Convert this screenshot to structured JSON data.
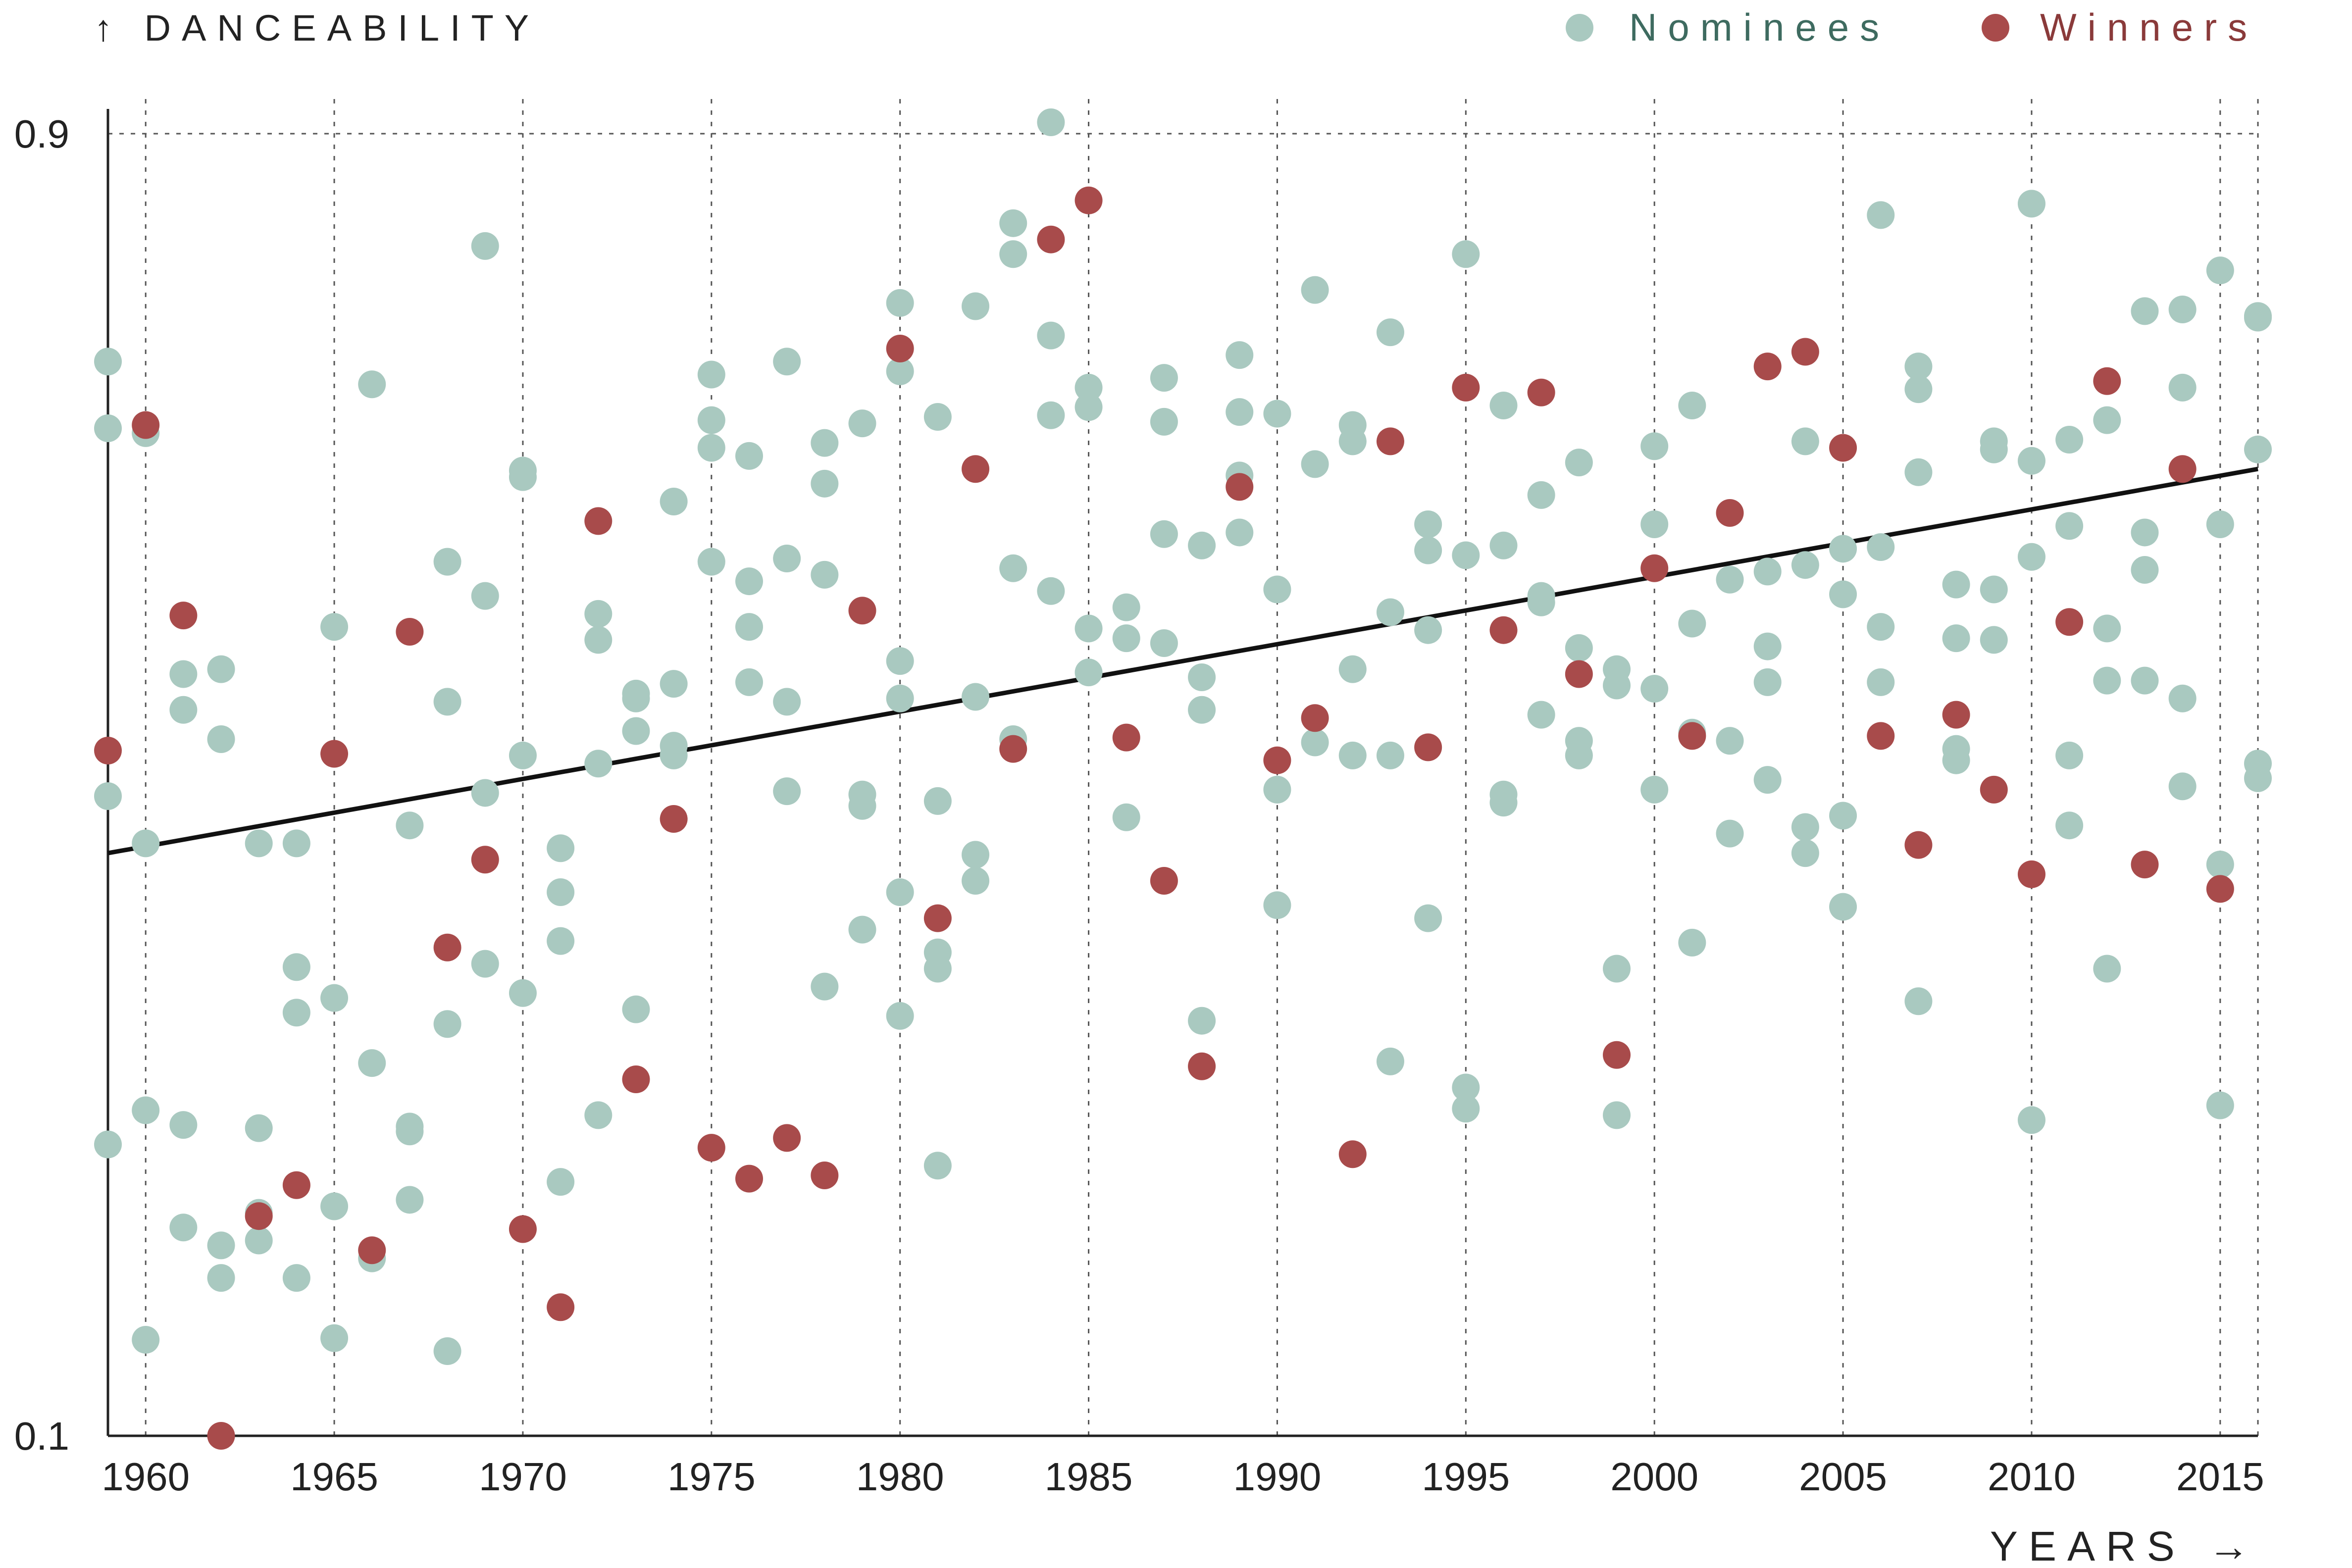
{
  "chart_data": {
    "type": "scatter",
    "ylabel": "↑ DANCEABILITY",
    "xlabel": "YEARS →",
    "xlim": [
      1959,
      2016
    ],
    "ylim": [
      0.1,
      0.9
    ],
    "x_ticks": [
      1960,
      1965,
      1970,
      1975,
      1980,
      1985,
      1990,
      1995,
      2000,
      2005,
      2010,
      2015
    ],
    "x_tick_labels": [
      "1960",
      "1965",
      "1970",
      "1975",
      "1980",
      "1985",
      "1990",
      "1995",
      "2000",
      "2005",
      "2010",
      "2015"
    ],
    "y_ticks": [
      0.1,
      0.9
    ],
    "y_tick_labels": [
      "0.1",
      "0.9"
    ],
    "grid": {
      "vertical": true,
      "horizontal_top": true,
      "style": "dotted"
    },
    "legend_position": "top-right",
    "colors": {
      "nominees": "#a9c9c0",
      "winners": "#a84b4b",
      "nominees_text": "#3e6b60",
      "winners_text": "#8a3a3a",
      "trend": "#111111"
    },
    "trendline": {
      "x": [
        1959,
        2016
      ],
      "y": [
        0.458,
        0.694
      ]
    },
    "series": [
      {
        "name": "Nominees",
        "points": [
          [
            1959,
            0.76
          ],
          [
            1959,
            0.719
          ],
          [
            1959,
            0.493
          ],
          [
            1959,
            0.279
          ],
          [
            1960,
            0.716
          ],
          [
            1960,
            0.464
          ],
          [
            1960,
            0.3
          ],
          [
            1960,
            0.159
          ],
          [
            1961,
            0.568
          ],
          [
            1961,
            0.546
          ],
          [
            1961,
            0.291
          ],
          [
            1961,
            0.228
          ],
          [
            1962,
            0.571
          ],
          [
            1962,
            0.528
          ],
          [
            1962,
            0.217
          ],
          [
            1962,
            0.197
          ],
          [
            1963,
            0.464
          ],
          [
            1963,
            0.289
          ],
          [
            1963,
            0.237
          ],
          [
            1963,
            0.22
          ],
          [
            1964,
            0.464
          ],
          [
            1964,
            0.388
          ],
          [
            1964,
            0.36
          ],
          [
            1964,
            0.197
          ],
          [
            1965,
            0.597
          ],
          [
            1965,
            0.369
          ],
          [
            1965,
            0.241
          ],
          [
            1965,
            0.16
          ],
          [
            1966,
            0.746
          ],
          [
            1966,
            0.329
          ],
          [
            1966,
            0.209
          ],
          [
            1967,
            0.475
          ],
          [
            1967,
            0.29
          ],
          [
            1967,
            0.287
          ],
          [
            1967,
            0.245
          ],
          [
            1968,
            0.637
          ],
          [
            1968,
            0.551
          ],
          [
            1968,
            0.353
          ],
          [
            1968,
            0.152
          ],
          [
            1969,
            0.831
          ],
          [
            1969,
            0.616
          ],
          [
            1969,
            0.495
          ],
          [
            1969,
            0.39
          ],
          [
            1970,
            0.693
          ],
          [
            1970,
            0.689
          ],
          [
            1970,
            0.518
          ],
          [
            1970,
            0.372
          ],
          [
            1971,
            0.461
          ],
          [
            1971,
            0.434
          ],
          [
            1971,
            0.404
          ],
          [
            1971,
            0.256
          ],
          [
            1972,
            0.605
          ],
          [
            1972,
            0.589
          ],
          [
            1972,
            0.513
          ],
          [
            1972,
            0.297
          ],
          [
            1973,
            0.556
          ],
          [
            1973,
            0.553
          ],
          [
            1973,
            0.533
          ],
          [
            1973,
            0.362
          ],
          [
            1974,
            0.674
          ],
          [
            1974,
            0.562
          ],
          [
            1974,
            0.524
          ],
          [
            1974,
            0.518
          ],
          [
            1975,
            0.752
          ],
          [
            1975,
            0.724
          ],
          [
            1975,
            0.707
          ],
          [
            1975,
            0.637
          ],
          [
            1976,
            0.702
          ],
          [
            1976,
            0.625
          ],
          [
            1976,
            0.597
          ],
          [
            1976,
            0.563
          ],
          [
            1977,
            0.76
          ],
          [
            1977,
            0.639
          ],
          [
            1977,
            0.551
          ],
          [
            1977,
            0.496
          ],
          [
            1978,
            0.71
          ],
          [
            1978,
            0.685
          ],
          [
            1978,
            0.629
          ],
          [
            1978,
            0.376
          ],
          [
            1979,
            0.722
          ],
          [
            1979,
            0.494
          ],
          [
            1979,
            0.487
          ],
          [
            1979,
            0.411
          ],
          [
            1980,
            0.796
          ],
          [
            1980,
            0.754
          ],
          [
            1980,
            0.576
          ],
          [
            1980,
            0.553
          ],
          [
            1980,
            0.434
          ],
          [
            1980,
            0.358
          ],
          [
            1981,
            0.726
          ],
          [
            1981,
            0.49
          ],
          [
            1981,
            0.397
          ],
          [
            1981,
            0.387
          ],
          [
            1981,
            0.266
          ],
          [
            1982,
            0.794
          ],
          [
            1982,
            0.554
          ],
          [
            1982,
            0.457
          ],
          [
            1982,
            0.441
          ],
          [
            1983,
            0.845
          ],
          [
            1983,
            0.826
          ],
          [
            1983,
            0.633
          ],
          [
            1983,
            0.528
          ],
          [
            1984,
            0.907
          ],
          [
            1984,
            0.776
          ],
          [
            1984,
            0.727
          ],
          [
            1984,
            0.619
          ],
          [
            1985,
            0.744
          ],
          [
            1985,
            0.732
          ],
          [
            1985,
            0.596
          ],
          [
            1985,
            0.569
          ],
          [
            1986,
            0.609
          ],
          [
            1986,
            0.59
          ],
          [
            1986,
            0.48
          ],
          [
            1987,
            0.75
          ],
          [
            1987,
            0.723
          ],
          [
            1987,
            0.654
          ],
          [
            1987,
            0.587
          ],
          [
            1988,
            0.647
          ],
          [
            1988,
            0.566
          ],
          [
            1988,
            0.546
          ],
          [
            1988,
            0.355
          ],
          [
            1989,
            0.764
          ],
          [
            1989,
            0.729
          ],
          [
            1989,
            0.69
          ],
          [
            1989,
            0.655
          ],
          [
            1990,
            0.728
          ],
          [
            1990,
            0.62
          ],
          [
            1990,
            0.497
          ],
          [
            1990,
            0.426
          ],
          [
            1991,
            0.804
          ],
          [
            1991,
            0.697
          ],
          [
            1991,
            0.526
          ],
          [
            1992,
            0.721
          ],
          [
            1992,
            0.711
          ],
          [
            1992,
            0.571
          ],
          [
            1992,
            0.518
          ],
          [
            1993,
            0.778
          ],
          [
            1993,
            0.606
          ],
          [
            1993,
            0.518
          ],
          [
            1993,
            0.33
          ],
          [
            1994,
            0.66
          ],
          [
            1994,
            0.644
          ],
          [
            1994,
            0.595
          ],
          [
            1994,
            0.418
          ],
          [
            1995,
            0.826
          ],
          [
            1995,
            0.641
          ],
          [
            1995,
            0.314
          ],
          [
            1995,
            0.301
          ],
          [
            1996,
            0.733
          ],
          [
            1996,
            0.647
          ],
          [
            1996,
            0.494
          ],
          [
            1996,
            0.489
          ],
          [
            1997,
            0.678
          ],
          [
            1997,
            0.616
          ],
          [
            1997,
            0.612
          ],
          [
            1997,
            0.543
          ],
          [
            1998,
            0.698
          ],
          [
            1998,
            0.584
          ],
          [
            1998,
            0.527
          ],
          [
            1998,
            0.518
          ],
          [
            1999,
            0.571
          ],
          [
            1999,
            0.561
          ],
          [
            1999,
            0.387
          ],
          [
            1999,
            0.297
          ],
          [
            2000,
            0.708
          ],
          [
            2000,
            0.66
          ],
          [
            2000,
            0.559
          ],
          [
            2000,
            0.497
          ],
          [
            2001,
            0.733
          ],
          [
            2001,
            0.599
          ],
          [
            2001,
            0.532
          ],
          [
            2001,
            0.403
          ],
          [
            2002,
            0.626
          ],
          [
            2002,
            0.527
          ],
          [
            2002,
            0.47
          ],
          [
            2003,
            0.631
          ],
          [
            2003,
            0.585
          ],
          [
            2003,
            0.563
          ],
          [
            2003,
            0.503
          ],
          [
            2004,
            0.711
          ],
          [
            2004,
            0.635
          ],
          [
            2004,
            0.474
          ],
          [
            2004,
            0.458
          ],
          [
            2005,
            0.645
          ],
          [
            2005,
            0.617
          ],
          [
            2005,
            0.481
          ],
          [
            2005,
            0.425
          ],
          [
            2006,
            0.85
          ],
          [
            2006,
            0.646
          ],
          [
            2006,
            0.597
          ],
          [
            2006,
            0.563
          ],
          [
            2007,
            0.757
          ],
          [
            2007,
            0.743
          ],
          [
            2007,
            0.692
          ],
          [
            2007,
            0.367
          ],
          [
            2008,
            0.623
          ],
          [
            2008,
            0.59
          ],
          [
            2008,
            0.522
          ],
          [
            2008,
            0.515
          ],
          [
            2009,
            0.711
          ],
          [
            2009,
            0.706
          ],
          [
            2009,
            0.62
          ],
          [
            2009,
            0.589
          ],
          [
            2010,
            0.857
          ],
          [
            2010,
            0.699
          ],
          [
            2010,
            0.64
          ],
          [
            2010,
            0.294
          ],
          [
            2011,
            0.712
          ],
          [
            2011,
            0.659
          ],
          [
            2011,
            0.518
          ],
          [
            2011,
            0.475
          ],
          [
            2012,
            0.724
          ],
          [
            2012,
            0.596
          ],
          [
            2012,
            0.564
          ],
          [
            2012,
            0.387
          ],
          [
            2013,
            0.791
          ],
          [
            2013,
            0.655
          ],
          [
            2013,
            0.632
          ],
          [
            2013,
            0.564
          ],
          [
            2014,
            0.792
          ],
          [
            2014,
            0.744
          ],
          [
            2014,
            0.553
          ],
          [
            2014,
            0.499
          ],
          [
            2015,
            0.816
          ],
          [
            2015,
            0.66
          ],
          [
            2015,
            0.451
          ],
          [
            2015,
            0.303
          ],
          [
            2016,
            0.788
          ],
          [
            2016,
            0.787
          ],
          [
            2016,
            0.706
          ],
          [
            2016,
            0.513
          ],
          [
            2016,
            0.504
          ]
        ]
      },
      {
        "name": "Winners",
        "points": [
          [
            1959,
            0.521
          ],
          [
            1960,
            0.721
          ],
          [
            1961,
            0.604
          ],
          [
            1962,
            0.1
          ],
          [
            1963,
            0.235
          ],
          [
            1964,
            0.254
          ],
          [
            1965,
            0.519
          ],
          [
            1966,
            0.214
          ],
          [
            1967,
            0.594
          ],
          [
            1968,
            0.4
          ],
          [
            1969,
            0.454
          ],
          [
            1970,
            0.227
          ],
          [
            1971,
            0.179
          ],
          [
            1972,
            0.662
          ],
          [
            1973,
            0.319
          ],
          [
            1974,
            0.479
          ],
          [
            1975,
            0.277
          ],
          [
            1976,
            0.258
          ],
          [
            1977,
            0.283
          ],
          [
            1978,
            0.26
          ],
          [
            1979,
            0.607
          ],
          [
            1980,
            0.768
          ],
          [
            1981,
            0.418
          ],
          [
            1982,
            0.694
          ],
          [
            1983,
            0.522
          ],
          [
            1984,
            0.835
          ],
          [
            1985,
            0.859
          ],
          [
            1986,
            0.529
          ],
          [
            1987,
            0.441
          ],
          [
            1988,
            0.327
          ],
          [
            1989,
            0.683
          ],
          [
            1990,
            0.515
          ],
          [
            1991,
            0.541
          ],
          [
            1992,
            0.273
          ],
          [
            1993,
            0.711
          ],
          [
            1994,
            0.523
          ],
          [
            1995,
            0.744
          ],
          [
            1996,
            0.595
          ],
          [
            1997,
            0.741
          ],
          [
            1998,
            0.568
          ],
          [
            1999,
            0.334
          ],
          [
            2000,
            0.633
          ],
          [
            2001,
            0.53
          ],
          [
            2002,
            0.667
          ],
          [
            2003,
            0.757
          ],
          [
            2004,
            0.766
          ],
          [
            2005,
            0.707
          ],
          [
            2006,
            0.53
          ],
          [
            2007,
            0.463
          ],
          [
            2008,
            0.543
          ],
          [
            2009,
            0.497
          ],
          [
            2010,
            0.445
          ],
          [
            2011,
            0.6
          ],
          [
            2012,
            0.748
          ],
          [
            2013,
            0.451
          ],
          [
            2014,
            0.694
          ],
          [
            2015,
            0.436
          ]
        ]
      }
    ]
  }
}
